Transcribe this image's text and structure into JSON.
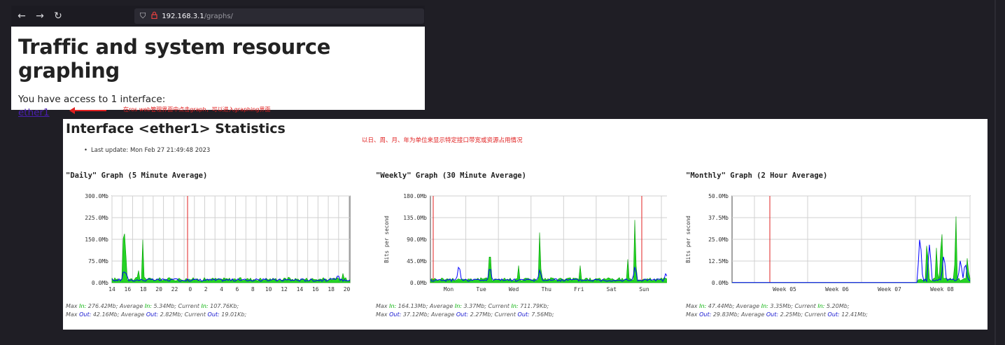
{
  "browser": {
    "back_icon": "←",
    "forward_icon": "→",
    "reload_icon": "↻",
    "url_host": "192.168.3.1",
    "url_path": "/graphs/"
  },
  "page1": {
    "title": "Traffic and system resource graphing",
    "access_text": "You have access to 1 interface:",
    "interface_link": "ether1",
    "note": "在ros web管理界面中点击graph，可以进入graphing界面"
  },
  "stats": {
    "title": "Interface <ether1> Statistics",
    "note": "以日、周、月、年为单位来显示特定接口带宽或资源占用情况",
    "last_update": "Last update: Mon Feb 27 21:49:48 2023"
  },
  "colors": {
    "in": "#00cc00",
    "out": "#0000ff",
    "accent_red": "#e02020",
    "grid": "#c8c8c8"
  },
  "graphs": [
    {
      "title": "\"Daily\" Graph (5 Minute Average)",
      "ylabel": "",
      "yticks": [
        "300.0Mb",
        "225.0Mb",
        "150.0Mb",
        "75.0Mb",
        "0.0Mb"
      ],
      "xticks": [
        "14",
        "16",
        "18",
        "20",
        "22",
        "0",
        "2",
        "4",
        "6",
        "8",
        "10",
        "12",
        "14",
        "16",
        "18",
        "20"
      ],
      "max_in": "276.42Mb",
      "avg_in": "5.34Mb",
      "cur_in": "107.76Kb",
      "max_out": "42.16Mb",
      "avg_out": "2.82Mb",
      "cur_out": "19.01Kb"
    },
    {
      "title": "\"Weekly\" Graph (30 Minute Average)",
      "ylabel": "Bits per second",
      "yticks": [
        "180.0Mb",
        "135.0Mb",
        "90.0Mb",
        "45.0Mb",
        "0.0Mb"
      ],
      "xticks": [
        "Mon",
        "Tue",
        "Wed",
        "Thu",
        "Fri",
        "Sat",
        "Sun",
        "Mon"
      ],
      "max_in": "164.13Mb",
      "avg_in": "3.37Mb",
      "cur_in": "711.79Kb",
      "max_out": "37.12Mb",
      "avg_out": "2.27Mb",
      "cur_out": "7.56Mb"
    },
    {
      "title": "\"Monthly\" Graph (2 Hour Average)",
      "ylabel": "Bits per second",
      "yticks": [
        "50.0Mb",
        "37.5Mb",
        "25.0Mb",
        "12.5Mb",
        "0.0Mb"
      ],
      "xticks": [
        "Week 05",
        "Week 06",
        "Week 07",
        "Week 08"
      ],
      "max_in": "47.44Mb",
      "avg_in": "3.35Mb",
      "cur_in": "5.20Mb",
      "max_out": "29.83Mb",
      "avg_out": "2.25Mb",
      "cur_out": "12.41Mb"
    }
  ],
  "labels": {
    "max": "Max",
    "average": "Average",
    "current": "Current",
    "in": "In",
    "out": "Out"
  }
}
